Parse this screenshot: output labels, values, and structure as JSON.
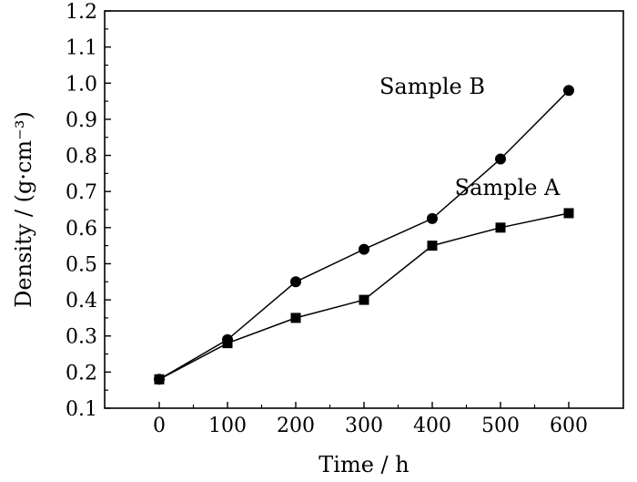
{
  "chart_data": {
    "type": "line",
    "xlabel": "Time / h",
    "ylabel": "Density / (g·cm⁻³)",
    "xlim": [
      -80,
      680
    ],
    "ylim": [
      0.1,
      1.2
    ],
    "x_ticks": [
      0,
      100,
      200,
      300,
      400,
      500,
      600
    ],
    "y_ticks": [
      0.1,
      0.2,
      0.3,
      0.4,
      0.5,
      0.6,
      0.7,
      0.8,
      0.9,
      1.0,
      1.1,
      1.2
    ],
    "y_tick_labels": [
      "0.1",
      "0.2",
      "0.3",
      "0.4",
      "0.5",
      "0.6",
      "0.7",
      "0.8",
      "0.9",
      "1.0",
      "1.1",
      "1.2"
    ],
    "grid": false,
    "legend": "none",
    "series": [
      {
        "name": "Sample A",
        "marker": "square",
        "x": [
          0,
          100,
          200,
          300,
          400,
          500,
          600
        ],
        "values": [
          0.18,
          0.28,
          0.35,
          0.4,
          0.55,
          0.6,
          0.64
        ]
      },
      {
        "name": "Sample B",
        "marker": "circle",
        "x": [
          0,
          100,
          200,
          300,
          400,
          500,
          600
        ],
        "values": [
          0.18,
          0.29,
          0.45,
          0.54,
          0.625,
          0.79,
          0.98
        ]
      }
    ],
    "annotations": [
      {
        "text": "Sample B",
        "series": 1,
        "x": 400,
        "y": 0.97
      },
      {
        "text": "Sample A",
        "series": 0,
        "x": 510,
        "y": 0.69
      }
    ]
  }
}
